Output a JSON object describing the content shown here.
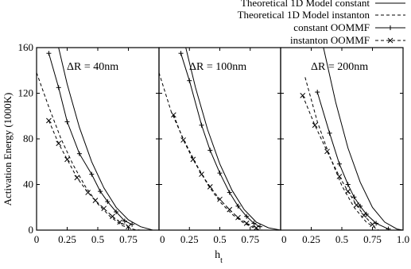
{
  "chart_data": [
    {
      "type": "line",
      "panel_label": "ΔR = 40nm",
      "xlim": [
        0,
        1.0
      ],
      "ylim": [
        0,
        160
      ],
      "x_ticks": [
        "0",
        "0.25",
        "0.5",
        "0.75"
      ],
      "y_ticks": [
        "0",
        "40",
        "80",
        "120",
        "160"
      ],
      "series": [
        {
          "name": "Theoretical 1D Model constant",
          "style": "solid",
          "marker": "none",
          "x": [
            0.18,
            0.25,
            0.35,
            0.45,
            0.55,
            0.65,
            0.75,
            0.85,
            0.95
          ],
          "y": [
            160,
            128,
            90,
            60,
            37,
            20,
            9,
            3,
            0
          ]
        },
        {
          "name": "Theoretical 1D Model instanton",
          "style": "dashed",
          "marker": "none",
          "x": [
            0.0,
            0.1,
            0.2,
            0.3,
            0.4,
            0.5,
            0.6,
            0.7,
            0.8,
            0.85
          ],
          "y": [
            138,
            108,
            80,
            57,
            38,
            23,
            12,
            4,
            0.5,
            0
          ]
        },
        {
          "name": "constant OOMMF",
          "style": "solid",
          "marker": "+",
          "x": [
            0.1,
            0.18,
            0.25,
            0.35,
            0.45,
            0.52,
            0.58,
            0.65,
            0.72,
            0.78
          ],
          "y": [
            155,
            125,
            95,
            67,
            49,
            34,
            25,
            16,
            8,
            5
          ]
        },
        {
          "name": "instanton OOMMF",
          "style": "dashed",
          "marker": "x",
          "x": [
            0.1,
            0.18,
            0.25,
            0.33,
            0.42,
            0.48,
            0.55,
            0.62,
            0.68,
            0.75
          ],
          "y": [
            96,
            76,
            62,
            46,
            33,
            26,
            19,
            12,
            7,
            3
          ]
        }
      ]
    },
    {
      "type": "line",
      "panel_label": "ΔR = 100nm",
      "xlim": [
        0,
        1.0
      ],
      "ylim": [
        0,
        160
      ],
      "x_ticks": [
        "0",
        "0.25",
        "0.5",
        "0.75"
      ],
      "y_ticks": [],
      "series": [
        {
          "name": "Theoretical 1D Model constant",
          "style": "solid",
          "marker": "none",
          "x": [
            0.22,
            0.3,
            0.4,
            0.5,
            0.6,
            0.7,
            0.8,
            0.9,
            1.0
          ],
          "y": [
            160,
            125,
            88,
            58,
            35,
            18,
            7,
            2,
            0
          ]
        },
        {
          "name": "Theoretical 1D Model instanton",
          "style": "dashed",
          "marker": "none",
          "x": [
            0.0,
            0.1,
            0.2,
            0.3,
            0.4,
            0.5,
            0.6,
            0.7,
            0.8,
            0.85
          ],
          "y": [
            138,
            104,
            80,
            59,
            40,
            25,
            14,
            6,
            1,
            0
          ]
        },
        {
          "name": "constant OOMMF",
          "style": "solid",
          "marker": "+",
          "x": [
            0.18,
            0.25,
            0.35,
            0.42,
            0.5,
            0.58,
            0.65,
            0.72,
            0.78,
            0.83
          ],
          "y": [
            155,
            131,
            92,
            70,
            50,
            33,
            21,
            12,
            6,
            3
          ]
        },
        {
          "name": "instanton OOMMF",
          "style": "dashed",
          "marker": "x",
          "x": [
            0.12,
            0.2,
            0.28,
            0.35,
            0.42,
            0.5,
            0.58,
            0.65,
            0.72,
            0.8
          ],
          "y": [
            101,
            79,
            62,
            49,
            38,
            27,
            18,
            11,
            6,
            2
          ]
        }
      ]
    },
    {
      "type": "line",
      "panel_label": "ΔR = 200nm",
      "xlim": [
        0,
        1.0
      ],
      "ylim": [
        0,
        160
      ],
      "x_ticks": [
        "0",
        "0.25",
        "0.5",
        "0.75",
        "1.0"
      ],
      "y_ticks": [],
      "series": [
        {
          "name": "Theoretical 1D Model constant",
          "style": "solid",
          "marker": "none",
          "x": [
            0.35,
            0.45,
            0.55,
            0.65,
            0.75,
            0.85,
            0.95,
            1.0
          ],
          "y": [
            160,
            112,
            72,
            42,
            20,
            7,
            1,
            0
          ]
        },
        {
          "name": "Theoretical 1D Model instanton",
          "style": "dashed",
          "marker": "none",
          "x": [
            0.2,
            0.3,
            0.4,
            0.5,
            0.6,
            0.7,
            0.8
          ],
          "y": [
            134,
            95,
            65,
            39,
            20,
            7,
            0
          ]
        },
        {
          "name": "constant OOMMF",
          "style": "solid",
          "marker": "+",
          "x": [
            0.3,
            0.4,
            0.48,
            0.55,
            0.6,
            0.65,
            0.7,
            0.78,
            0.88
          ],
          "y": [
            121,
            85,
            58,
            40,
            29,
            21,
            14,
            6,
            1
          ]
        },
        {
          "name": "instanton OOMMF",
          "style": "dashed",
          "marker": "x",
          "x": [
            0.18,
            0.28,
            0.38,
            0.48,
            0.55,
            0.62,
            0.68,
            0.75
          ],
          "y": [
            118,
            92,
            69,
            47,
            34,
            22,
            13,
            5
          ]
        }
      ]
    }
  ],
  "ylabel": "Activation Energy (1000K)",
  "xlabel": "h",
  "xlabel_subscript": "t",
  "legend": {
    "placement": "top-right",
    "entries": [
      "Theoretical 1D Model constant",
      "Theoretical 1D Model instanton",
      "constant OOMMF",
      "instanton OOMMF"
    ]
  }
}
